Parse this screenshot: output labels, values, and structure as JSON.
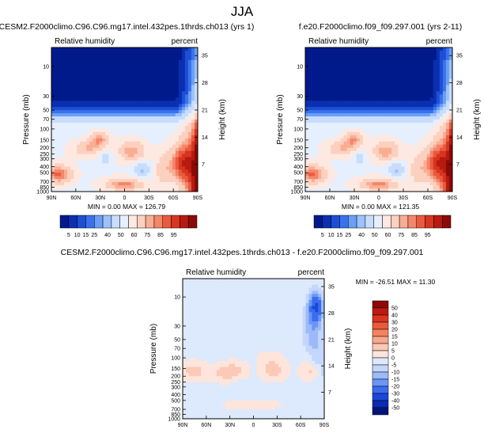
{
  "page_title": "JJA",
  "palettes": {
    "abs": [
      "#001a8c",
      "#0a2fb0",
      "#1d4fd6",
      "#3a72ec",
      "#6a9ff5",
      "#9cc2f9",
      "#c8ddfc",
      "#e6effd",
      "#fde9e1",
      "#fcd0bf",
      "#f9ae94",
      "#f4866a",
      "#ea5a3f",
      "#d73520",
      "#b81a10",
      "#8a0a05"
    ],
    "diff": [
      "#00157a",
      "#0a2bb5",
      "#1a48da",
      "#3a6cf0",
      "#6b95f6",
      "#9cbaf9",
      "#c4d6fb",
      "#dde9fc",
      "#fde5dc",
      "#fcc9b6",
      "#f9a88c",
      "#f4835f",
      "#ec5a3a",
      "#db3520",
      "#bf1a10",
      "#900805"
    ]
  },
  "chart_data": [
    {
      "type": "heatmap",
      "title": "CESM2.F2000climo.C96.C96.mg17.intel.432pes.1thrds.ch013 (yrs 1)",
      "left_label": "Relative humidity",
      "right_label": "percent",
      "ylabel": "Pressure (mb)",
      "y2label": "Height (km)",
      "x_ticks": [
        "90N",
        "60N",
        "30N",
        "0",
        "30S",
        "60S",
        "90S"
      ],
      "y_ticks": [
        "10",
        "30",
        "50",
        "70",
        "100",
        "150",
        "200",
        "250",
        "300",
        "400",
        "500",
        "700",
        "850",
        "1000"
      ],
      "y_tick_values": [
        10,
        30,
        50,
        70,
        100,
        150,
        200,
        250,
        300,
        400,
        500,
        700,
        850,
        1000
      ],
      "y2_ticks": [
        "35",
        "28",
        "21",
        "14",
        "7"
      ],
      "y2_tick_values": [
        35,
        28,
        21,
        14,
        7
      ],
      "ylim": [
        1000,
        5
      ],
      "xlim": [
        90,
        -90
      ],
      "stats": {
        "min_label": "MIN =",
        "min": "0.00",
        "max_label": "MAX =",
        "max": "126.79"
      },
      "colorbar_labels": [
        "5",
        "10",
        "15",
        "25",
        "40",
        "50",
        "60",
        "75",
        "85",
        "95"
      ],
      "palette": "abs",
      "field": "abs"
    },
    {
      "type": "heatmap",
      "title": "f.e20.F2000climo.f09_f09.297.001 (yrs 2-11)",
      "left_label": "Relative humidity",
      "right_label": "percent",
      "ylabel": "Pressure (mb)",
      "y2label": "Height (km)",
      "x_ticks": [
        "90N",
        "60N",
        "30N",
        "0",
        "30S",
        "60S",
        "90S"
      ],
      "y_ticks": [
        "10",
        "30",
        "50",
        "70",
        "100",
        "150",
        "200",
        "250",
        "300",
        "400",
        "500",
        "700",
        "850",
        "1000"
      ],
      "y_tick_values": [
        10,
        30,
        50,
        70,
        100,
        150,
        200,
        250,
        300,
        400,
        500,
        700,
        850,
        1000
      ],
      "y2_ticks": [
        "35",
        "28",
        "21",
        "14",
        "7"
      ],
      "y2_tick_values": [
        35,
        28,
        21,
        14,
        7
      ],
      "ylim": [
        1000,
        5
      ],
      "xlim": [
        90,
        -90
      ],
      "stats": {
        "min_label": "MIN =",
        "min": "0.00",
        "max_label": "MAX =",
        "max": "121.35"
      },
      "colorbar_labels": [
        "5",
        "10",
        "15",
        "25",
        "40",
        "50",
        "60",
        "75",
        "85",
        "95"
      ],
      "palette": "abs",
      "field": "abs"
    },
    {
      "type": "heatmap",
      "title": "CESM2.F2000climo.C96.C96.mg17.intel.432pes.1thrds.ch013 - f.e20.F2000climo.f09_f09.297.001",
      "left_label": "Relative humidity",
      "right_label": "percent",
      "ylabel": "Pressure (mb)",
      "y2label": "Height (km)",
      "x_ticks": [
        "90N",
        "60N",
        "30N",
        "0",
        "30S",
        "60S",
        "90S"
      ],
      "y_ticks": [
        "10",
        "30",
        "50",
        "70",
        "100",
        "150",
        "200",
        "250",
        "300",
        "400",
        "500",
        "700",
        "850",
        "1000"
      ],
      "y_tick_values": [
        10,
        30,
        50,
        70,
        100,
        150,
        200,
        250,
        300,
        400,
        500,
        700,
        850,
        1000
      ],
      "y2_ticks": [
        "35",
        "28",
        "21",
        "14",
        "7"
      ],
      "y2_tick_values": [
        35,
        28,
        21,
        14,
        7
      ],
      "ylim": [
        1000,
        5
      ],
      "xlim": [
        90,
        -90
      ],
      "stats": {
        "min_label": "MIN =",
        "min": "-26.51",
        "max_label": "MAX =",
        "max": "11.30"
      },
      "colorbar_labels": [
        "50",
        "40",
        "30",
        "20",
        "15",
        "10",
        "5",
        "0",
        "-5",
        "-10",
        "-15",
        "-20",
        "-30",
        "-40",
        "-50"
      ],
      "palette": "diff",
      "field": "diff"
    }
  ]
}
